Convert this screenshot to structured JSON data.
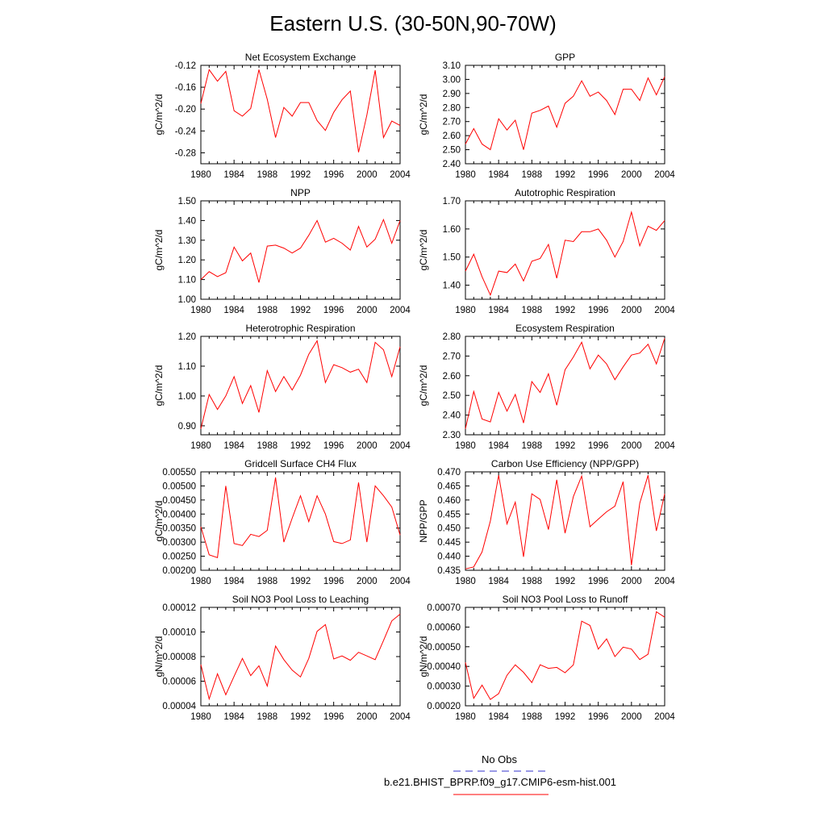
{
  "title": "Eastern U.S. (30-50N,90-70W)",
  "colors": {
    "model": "#ff0000",
    "obs": "#3333cc",
    "axis": "#000000"
  },
  "legend": {
    "obs_label": "No Obs",
    "model_label": "b.e21.BHIST_BPRP.f09_g17.CMIP6-esm-hist.001"
  },
  "chart_data": [
    {
      "type": "line",
      "title": "Net Ecosystem Exchange",
      "ylabel": "gC/m^2/d",
      "xlim": [
        1980,
        2004
      ],
      "ylim": [
        -0.3,
        -0.12
      ],
      "xticks": [
        1980,
        1984,
        1988,
        1992,
        1996,
        2000,
        2004
      ],
      "yticks": [
        -0.12,
        -0.16,
        -0.2,
        -0.24,
        -0.28
      ],
      "ytick_labels": [
        "-0.12",
        "-0.16",
        "-0.20",
        "-0.24",
        "-0.28"
      ],
      "x": [
        1980,
        1981,
        1982,
        1983,
        1984,
        1985,
        1986,
        1987,
        1988,
        1989,
        1990,
        1991,
        1992,
        1993,
        1994,
        1995,
        1996,
        1997,
        1998,
        1999,
        2000,
        2001,
        2002,
        2003,
        2004
      ],
      "values": [
        -0.19,
        -0.128,
        -0.149,
        -0.131,
        -0.203,
        -0.213,
        -0.199,
        -0.128,
        -0.182,
        -0.252,
        -0.197,
        -0.213,
        -0.188,
        -0.188,
        -0.221,
        -0.239,
        -0.206,
        -0.183,
        -0.167,
        -0.279,
        -0.211,
        -0.129,
        -0.252,
        -0.222,
        -0.23
      ]
    },
    {
      "type": "line",
      "title": "GPP",
      "ylabel": "gC/m^2/d",
      "xlim": [
        1980,
        2004
      ],
      "ylim": [
        2.4,
        3.1
      ],
      "xticks": [
        1980,
        1984,
        1988,
        1992,
        1996,
        2000,
        2004
      ],
      "yticks": [
        2.4,
        2.5,
        2.6,
        2.7,
        2.8,
        2.9,
        3.0,
        3.1
      ],
      "ytick_labels": [
        "2.40",
        "2.50",
        "2.60",
        "2.70",
        "2.80",
        "2.90",
        "3.00",
        "3.10"
      ],
      "x": [
        1980,
        1981,
        1982,
        1983,
        1984,
        1985,
        1986,
        1987,
        1988,
        1989,
        1990,
        1991,
        1992,
        1993,
        1994,
        1995,
        1996,
        1997,
        1998,
        1999,
        2000,
        2001,
        2002,
        2003,
        2004
      ],
      "values": [
        2.54,
        2.65,
        2.54,
        2.5,
        2.72,
        2.64,
        2.71,
        2.5,
        2.76,
        2.78,
        2.81,
        2.66,
        2.83,
        2.88,
        2.99,
        2.88,
        2.91,
        2.85,
        2.75,
        2.93,
        2.93,
        2.85,
        3.01,
        2.89,
        3.02
      ]
    },
    {
      "type": "line",
      "title": "NPP",
      "ylabel": "gC/m^2/d",
      "xlim": [
        1980,
        2004
      ],
      "ylim": [
        1.0,
        1.5
      ],
      "xticks": [
        1980,
        1984,
        1988,
        1992,
        1996,
        2000,
        2004
      ],
      "yticks": [
        1.0,
        1.1,
        1.2,
        1.3,
        1.4,
        1.5
      ],
      "ytick_labels": [
        "1.00",
        "1.10",
        "1.20",
        "1.30",
        "1.40",
        "1.50"
      ],
      "x": [
        1980,
        1981,
        1982,
        1983,
        1984,
        1985,
        1986,
        1987,
        1988,
        1989,
        1990,
        1991,
        1992,
        1993,
        1994,
        1995,
        1996,
        1997,
        1998,
        1999,
        2000,
        2001,
        2002,
        2003,
        2004
      ],
      "values": [
        1.1,
        1.14,
        1.115,
        1.135,
        1.265,
        1.195,
        1.235,
        1.085,
        1.27,
        1.275,
        1.26,
        1.235,
        1.26,
        1.325,
        1.4,
        1.29,
        1.31,
        1.285,
        1.25,
        1.37,
        1.265,
        1.305,
        1.405,
        1.285,
        1.4
      ]
    },
    {
      "type": "line",
      "title": "Autotrophic Respiration",
      "ylabel": "gC/m^2/d",
      "xlim": [
        1980,
        2004
      ],
      "ylim": [
        1.35,
        1.7
      ],
      "xticks": [
        1980,
        1984,
        1988,
        1992,
        1996,
        2000,
        2004
      ],
      "yticks": [
        1.4,
        1.5,
        1.6,
        1.7
      ],
      "ytick_labels": [
        "1.40",
        "1.50",
        "1.60",
        "1.70"
      ],
      "x": [
        1980,
        1981,
        1982,
        1983,
        1984,
        1985,
        1986,
        1987,
        1988,
        1989,
        1990,
        1991,
        1992,
        1993,
        1994,
        1995,
        1996,
        1997,
        1998,
        1999,
        2000,
        2001,
        2002,
        2003,
        2004
      ],
      "values": [
        1.45,
        1.51,
        1.43,
        1.365,
        1.45,
        1.445,
        1.475,
        1.415,
        1.485,
        1.495,
        1.545,
        1.425,
        1.56,
        1.555,
        1.59,
        1.59,
        1.6,
        1.56,
        1.5,
        1.555,
        1.66,
        1.54,
        1.61,
        1.595,
        1.63
      ]
    },
    {
      "type": "line",
      "title": "Heterotrophic Respiration",
      "ylabel": "gC/m^2/d",
      "xlim": [
        1980,
        2004
      ],
      "ylim": [
        0.87,
        1.2
      ],
      "xticks": [
        1980,
        1984,
        1988,
        1992,
        1996,
        2000,
        2004
      ],
      "yticks": [
        0.9,
        1.0,
        1.1,
        1.2
      ],
      "ytick_labels": [
        "0.90",
        "1.00",
        "1.10",
        "1.20"
      ],
      "x": [
        1980,
        1981,
        1982,
        1983,
        1984,
        1985,
        1986,
        1987,
        1988,
        1989,
        1990,
        1991,
        1992,
        1993,
        1994,
        1995,
        1996,
        1997,
        1998,
        1999,
        2000,
        2001,
        2002,
        2003,
        2004
      ],
      "values": [
        0.89,
        1.005,
        0.955,
        1.0,
        1.065,
        0.975,
        1.035,
        0.945,
        1.085,
        1.015,
        1.065,
        1.02,
        1.07,
        1.14,
        1.185,
        1.045,
        1.105,
        1.095,
        1.08,
        1.09,
        1.045,
        1.18,
        1.155,
        1.065,
        1.165
      ]
    },
    {
      "type": "line",
      "title": "Ecosystem Respiration",
      "ylabel": "gC/m^2/d",
      "xlim": [
        1980,
        2004
      ],
      "ylim": [
        2.3,
        2.8
      ],
      "xticks": [
        1980,
        1984,
        1988,
        1992,
        1996,
        2000,
        2004
      ],
      "yticks": [
        2.3,
        2.4,
        2.5,
        2.6,
        2.7,
        2.8
      ],
      "ytick_labels": [
        "2.30",
        "2.40",
        "2.50",
        "2.60",
        "2.70",
        "2.80"
      ],
      "x": [
        1980,
        1981,
        1982,
        1983,
        1984,
        1985,
        1986,
        1987,
        1988,
        1989,
        1990,
        1991,
        1992,
        1993,
        1994,
        1995,
        1996,
        1997,
        1998,
        1999,
        2000,
        2001,
        2002,
        2003,
        2004
      ],
      "values": [
        2.33,
        2.52,
        2.38,
        2.365,
        2.515,
        2.42,
        2.505,
        2.36,
        2.57,
        2.515,
        2.61,
        2.45,
        2.63,
        2.695,
        2.77,
        2.635,
        2.705,
        2.66,
        2.58,
        2.645,
        2.705,
        2.715,
        2.76,
        2.66,
        2.79
      ]
    },
    {
      "type": "line",
      "title": "Gridcell Surface CH4 Flux",
      "ylabel": "gC/m^2/d",
      "xlim": [
        1980,
        2004
      ],
      "ylim": [
        0.002,
        0.0055
      ],
      "xticks": [
        1980,
        1984,
        1988,
        1992,
        1996,
        2000,
        2004
      ],
      "yticks": [
        0.002,
        0.0025,
        0.003,
        0.0035,
        0.004,
        0.0045,
        0.005,
        0.0055
      ],
      "ytick_labels": [
        "0.00200",
        "0.00250",
        "0.00300",
        "0.00350",
        "0.00400",
        "0.00450",
        "0.00500",
        "0.00550"
      ],
      "x": [
        1980,
        1981,
        1982,
        1983,
        1984,
        1985,
        1986,
        1987,
        1988,
        1989,
        1990,
        1991,
        1992,
        1993,
        1994,
        1995,
        1996,
        1997,
        1998,
        1999,
        2000,
        2001,
        2002,
        2003,
        2004
      ],
      "values": [
        0.00355,
        0.00255,
        0.00245,
        0.005,
        0.00295,
        0.00288,
        0.00328,
        0.0032,
        0.00342,
        0.0053,
        0.003,
        0.00385,
        0.00465,
        0.00373,
        0.00465,
        0.004,
        0.00302,
        0.00295,
        0.00308,
        0.00512,
        0.003,
        0.005,
        0.00465,
        0.00425,
        0.00325
      ]
    },
    {
      "type": "line",
      "title": "Carbon Use Efficiency (NPP/GPP)",
      "ylabel": "NPP/GPP",
      "xlim": [
        1980,
        2004
      ],
      "ylim": [
        0.435,
        0.47
      ],
      "xticks": [
        1980,
        1984,
        1988,
        1992,
        1996,
        2000,
        2004
      ],
      "yticks": [
        0.435,
        0.44,
        0.445,
        0.45,
        0.455,
        0.46,
        0.465,
        0.47
      ],
      "ytick_labels": [
        "0.435",
        "0.440",
        "0.445",
        "0.450",
        "0.455",
        "0.460",
        "0.465",
        "0.470"
      ],
      "x": [
        1980,
        1981,
        1982,
        1983,
        1984,
        1985,
        1986,
        1987,
        1988,
        1989,
        1990,
        1991,
        1992,
        1993,
        1994,
        1995,
        1996,
        1997,
        1998,
        1999,
        2000,
        2001,
        2002,
        2003,
        2004
      ],
      "values": [
        0.4355,
        0.4362,
        0.4415,
        0.4525,
        0.4688,
        0.4515,
        0.4592,
        0.4398,
        0.4622,
        0.4602,
        0.4495,
        0.4672,
        0.4482,
        0.4612,
        0.4685,
        0.4505,
        0.4532,
        0.4558,
        0.4578,
        0.4665,
        0.4368,
        0.4588,
        0.4688,
        0.449,
        0.4622
      ]
    },
    {
      "type": "line",
      "title": "Soil NO3 Pool Loss to Leaching",
      "ylabel": "gN/m^2/d",
      "xlim": [
        1980,
        2004
      ],
      "ylim": [
        4e-05,
        0.00012
      ],
      "xticks": [
        1980,
        1984,
        1988,
        1992,
        1996,
        2000,
        2004
      ],
      "yticks": [
        4e-05,
        6e-05,
        8e-05,
        0.0001,
        0.00012
      ],
      "ytick_labels": [
        "0.00004",
        "0.00006",
        "0.00008",
        "0.00010",
        "0.00012"
      ],
      "x": [
        1980,
        1981,
        1982,
        1983,
        1984,
        1985,
        1986,
        1987,
        1988,
        1989,
        1990,
        1991,
        1992,
        1993,
        1994,
        1995,
        1996,
        1997,
        1998,
        1999,
        2000,
        2001,
        2002,
        2003,
        2004
      ],
      "values": [
        7.35e-05,
        4.55e-05,
        6.6e-05,
        4.9e-05,
        6.4e-05,
        7.85e-05,
        6.45e-05,
        7.25e-05,
        5.6e-05,
        8.85e-05,
        7.75e-05,
        6.9e-05,
        6.35e-05,
        7.85e-05,
        0.0001005,
        0.000106,
        7.8e-05,
        8.05e-05,
        7.7e-05,
        8.35e-05,
        8.05e-05,
        7.75e-05,
        9.3e-05,
        0.000109,
        0.0001145
      ]
    },
    {
      "type": "line",
      "title": "Soil NO3 Pool Loss to Runoff",
      "ylabel": "gN/m^2/d",
      "xlim": [
        1980,
        2004
      ],
      "ylim": [
        0.0002,
        0.0007
      ],
      "xticks": [
        1980,
        1984,
        1988,
        1992,
        1996,
        2000,
        2004
      ],
      "yticks": [
        0.0002,
        0.0003,
        0.0004,
        0.0005,
        0.0006,
        0.0007
      ],
      "ytick_labels": [
        "0.00020",
        "0.00030",
        "0.00040",
        "0.00050",
        "0.00060",
        "0.00070"
      ],
      "x": [
        1980,
        1981,
        1982,
        1983,
        1984,
        1985,
        1986,
        1987,
        1988,
        1989,
        1990,
        1991,
        1992,
        1993,
        1994,
        1995,
        1996,
        1997,
        1998,
        1999,
        2000,
        2001,
        2002,
        2003,
        2004
      ],
      "values": [
        0.00042,
        0.000238,
        0.000305,
        0.000232,
        0.000262,
        0.000355,
        0.000408,
        0.00037,
        0.000318,
        0.000408,
        0.00039,
        0.000395,
        0.000368,
        0.000408,
        0.00063,
        0.000608,
        0.000488,
        0.00054,
        0.00045,
        0.000498,
        0.000488,
        0.000435,
        0.000462,
        0.000678,
        0.00065
      ]
    }
  ]
}
